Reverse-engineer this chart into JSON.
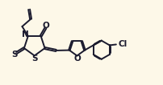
{
  "bg_color": "#fdf8e8",
  "line_color": "#1a1a2e",
  "line_width": 1.4,
  "text_color": "#1a1a2e",
  "figsize": [
    2.03,
    1.06
  ],
  "dpi": 100,
  "xlim": [
    0,
    10.5
  ],
  "ylim": [
    0,
    5.5
  ]
}
